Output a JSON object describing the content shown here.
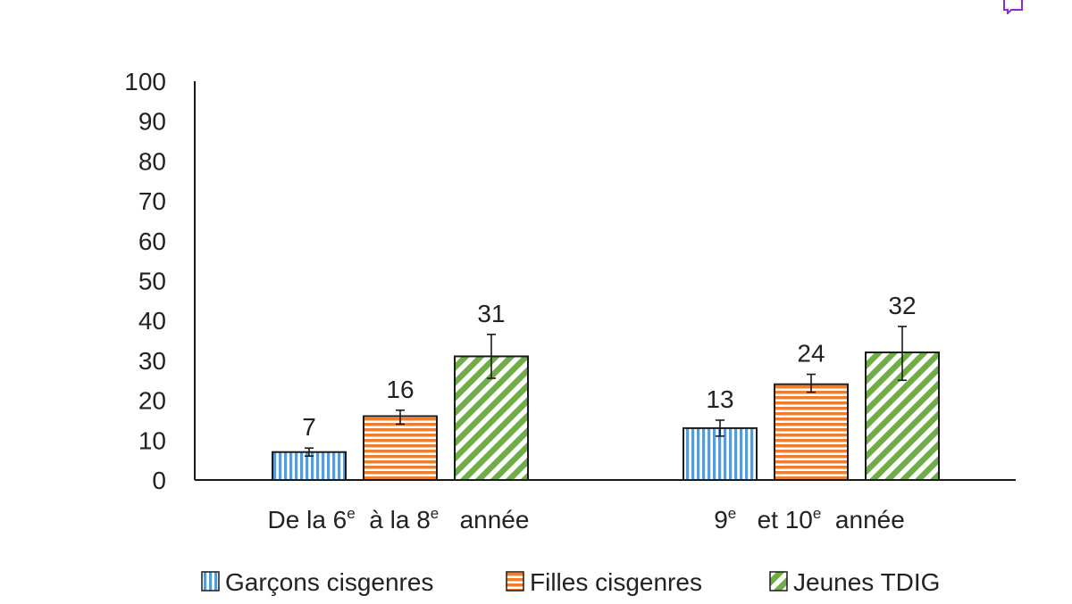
{
  "chart_data": {
    "type": "bar",
    "categories": [
      {
        "parts": [
          {
            "text": "De la 6",
            "sup": false
          },
          {
            "text": "e",
            "sup": true
          },
          {
            "text": "  à la 8",
            "sup": false
          },
          {
            "text": "e",
            "sup": true
          },
          {
            "text": "   année",
            "sup": false
          }
        ]
      },
      {
        "parts": [
          {
            "text": "9",
            "sup": false
          },
          {
            "text": "e",
            "sup": true
          },
          {
            "text": "   et 10",
            "sup": false
          },
          {
            "text": "e",
            "sup": true
          },
          {
            "text": "  année",
            "sup": false
          }
        ]
      }
    ],
    "series": [
      {
        "name": "Garçons cisgenres",
        "color": "#5b9bd5",
        "pattern": "vertical-stripes",
        "values": [
          7,
          13
        ],
        "error_low": [
          6,
          11
        ],
        "error_high": [
          8,
          15
        ]
      },
      {
        "name": "Filles cisgenres",
        "color": "#ed7d31",
        "pattern": "horizontal-stripes",
        "values": [
          16,
          24
        ],
        "error_low": [
          14,
          22
        ],
        "error_high": [
          17.5,
          26.5
        ]
      },
      {
        "name": "Jeunes TDIG",
        "color": "#70ad47",
        "pattern": "diagonal-stripes",
        "values": [
          31,
          32
        ],
        "error_low": [
          25.5,
          25
        ],
        "error_high": [
          36.5,
          38.5
        ]
      }
    ],
    "data_labels": [
      [
        "7",
        "13"
      ],
      [
        "16",
        "24"
      ],
      [
        "31",
        "32"
      ]
    ],
    "y_ticks": [
      0,
      10,
      20,
      30,
      40,
      50,
      60,
      70,
      80,
      90,
      100
    ],
    "ylim": [
      0,
      100
    ],
    "grid": false,
    "legend_position": "bottom",
    "title": "",
    "xlabel": "",
    "ylabel": ""
  },
  "comment_icon": "comment-icon"
}
